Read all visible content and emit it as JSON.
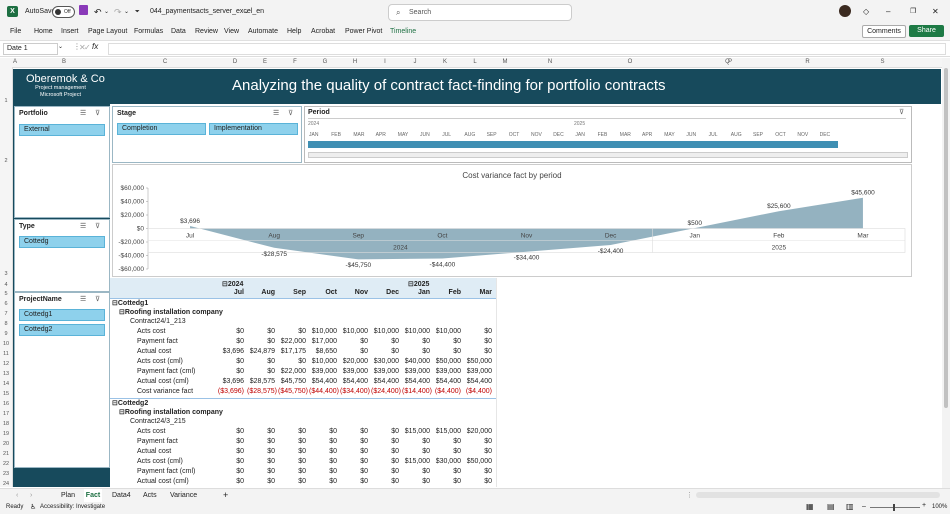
{
  "titlebar": {
    "autosave_label": "AutoSave",
    "autosave_state": "Off",
    "filename": "044_paymentsacts_server_excel_en",
    "search_placeholder": "Search"
  },
  "menu": {
    "items": [
      "File",
      "Home",
      "Insert",
      "Page Layout",
      "Formulas",
      "Data",
      "Review",
      "View",
      "Automate",
      "Help",
      "Acrobat",
      "Power Pivot",
      "Timeline"
    ],
    "comments_label": "Comments",
    "share_label": "Share"
  },
  "formula_bar": {
    "name_box": "Date 1",
    "fx_label": "fx",
    "value": ""
  },
  "columns": [
    "A",
    "B",
    "C",
    "D",
    "E",
    "F",
    "G",
    "H",
    "I",
    "J",
    "K",
    "L",
    "M",
    "N",
    "O",
    "P",
    "Q",
    "R",
    "S"
  ],
  "rows": [
    "1",
    "2",
    "3",
    "4",
    "5",
    "6",
    "7",
    "8",
    "9",
    "10",
    "11",
    "12",
    "13",
    "14",
    "15",
    "16",
    "17",
    "18",
    "19",
    "20",
    "21",
    "22",
    "23",
    "24"
  ],
  "banner": {
    "company": "Oberemok & Co",
    "line2": "Project management",
    "line3": "Microsoft Project",
    "title": "Analyzing the quality of contract fact-finding for portfolio contracts"
  },
  "slicers": {
    "portfolio": {
      "title": "Portfolio",
      "items": [
        "External"
      ]
    },
    "stage": {
      "title": "Stage",
      "items": [
        "Completion",
        "Implementation"
      ]
    },
    "type": {
      "title": "Type",
      "items": [
        "Cottedg"
      ]
    },
    "project": {
      "title": "ProjectName",
      "items": [
        "Cottedg1",
        "Cottedg2"
      ]
    }
  },
  "timeline": {
    "title": "Period",
    "year1": "2024",
    "year2": "2025",
    "months": [
      "JAN",
      "FEB",
      "MAR",
      "APR",
      "MAY",
      "JUN",
      "JUL",
      "AUG",
      "SEP",
      "OCT",
      "NOV",
      "DEC",
      "JAN",
      "FEB",
      "MAR",
      "APR",
      "MAY",
      "JUN",
      "JUL",
      "AUG",
      "SEP",
      "OCT",
      "NOV",
      "DEC"
    ]
  },
  "chart_data": {
    "type": "area",
    "title": "Cost variance fact by period",
    "categories": [
      "Jul",
      "Aug",
      "Sep",
      "Oct",
      "Nov",
      "Dec",
      "Jan",
      "Feb",
      "Mar"
    ],
    "year_labels": [
      {
        "label": "2024"
      },
      {
        "label": "2025"
      }
    ],
    "series": [
      {
        "values": [
          3696,
          -28575,
          -45750,
          -44400,
          -34400,
          -24400,
          500,
          25600,
          45600
        ]
      }
    ],
    "data_labels": [
      "$3,696",
      "-$28,575",
      "-$45,750",
      "-$44,400",
      "-$34,400",
      "-$24,400",
      "$500",
      "$25,600",
      "$45,600"
    ],
    "yticks": [
      "$60,000",
      "$40,000",
      "$20,000",
      "$0",
      "-$20,000",
      "-$40,000",
      "-$60,000"
    ],
    "ylim": [
      -60000,
      60000
    ],
    "color": "#8eaebd"
  },
  "pivot": {
    "year1": "2024",
    "year2": "2025",
    "months": [
      "Jul",
      "Aug",
      "Sep",
      "Oct",
      "Nov",
      "Dec",
      "Jan",
      "Feb",
      "Mar"
    ],
    "rows": [
      {
        "label": "Cottedg1",
        "level": 0,
        "kind": "group",
        "values": []
      },
      {
        "label": "Roofing installation company",
        "level": 1,
        "kind": "group",
        "values": []
      },
      {
        "label": "Contract24/1_213",
        "level": 2,
        "kind": "label",
        "values": []
      },
      {
        "label": "Acts cost",
        "level": 3,
        "kind": "data",
        "values": [
          "$0",
          "$0",
          "$0",
          "$10,000",
          "$10,000",
          "$10,000",
          "$10,000",
          "$10,000",
          "$0"
        ]
      },
      {
        "label": "Payment fact",
        "level": 3,
        "kind": "data",
        "values": [
          "$0",
          "$0",
          "$22,000",
          "$17,000",
          "$0",
          "$0",
          "$0",
          "$0",
          "$0"
        ]
      },
      {
        "label": "Actual cost",
        "level": 3,
        "kind": "data",
        "values": [
          "$3,696",
          "$24,879",
          "$17,175",
          "$8,650",
          "$0",
          "$0",
          "$0",
          "$0",
          "$0"
        ]
      },
      {
        "label": "Acts cost (cml)",
        "level": 3,
        "kind": "data",
        "values": [
          "$0",
          "$0",
          "$0",
          "$10,000",
          "$20,000",
          "$30,000",
          "$40,000",
          "$50,000",
          "$50,000"
        ]
      },
      {
        "label": "Payment fact (cml)",
        "level": 3,
        "kind": "data",
        "values": [
          "$0",
          "$0",
          "$22,000",
          "$39,000",
          "$39,000",
          "$39,000",
          "$39,000",
          "$39,000",
          "$39,000"
        ]
      },
      {
        "label": "Actual cost (cml)",
        "level": 3,
        "kind": "data",
        "values": [
          "$3,696",
          "$28,575",
          "$45,750",
          "$54,400",
          "$54,400",
          "$54,400",
          "$54,400",
          "$54,400",
          "$54,400"
        ]
      },
      {
        "label": "Cost variance fact",
        "level": 3,
        "kind": "neg",
        "values": [
          "($3,696)",
          "($28,575)",
          "($45,750)",
          "($44,400)",
          "($34,400)",
          "($24,400)",
          "($14,400)",
          "($4,400)",
          "($4,400)"
        ]
      },
      {
        "label": "Cottedg2",
        "level": 0,
        "kind": "group",
        "values": []
      },
      {
        "label": "Roofing installation company",
        "level": 1,
        "kind": "group",
        "values": []
      },
      {
        "label": "Contract24/3_215",
        "level": 2,
        "kind": "label",
        "values": []
      },
      {
        "label": "Acts cost",
        "level": 3,
        "kind": "data",
        "values": [
          "$0",
          "$0",
          "$0",
          "$0",
          "$0",
          "$0",
          "$15,000",
          "$15,000",
          "$20,000"
        ]
      },
      {
        "label": "Payment fact",
        "level": 3,
        "kind": "data",
        "values": [
          "$0",
          "$0",
          "$0",
          "$0",
          "$0",
          "$0",
          "$0",
          "$0",
          "$0"
        ]
      },
      {
        "label": "Actual cost",
        "level": 3,
        "kind": "data",
        "values": [
          "$0",
          "$0",
          "$0",
          "$0",
          "$0",
          "$0",
          "$0",
          "$0",
          "$0"
        ]
      },
      {
        "label": "Acts cost (cml)",
        "level": 3,
        "kind": "data",
        "values": [
          "$0",
          "$0",
          "$0",
          "$0",
          "$0",
          "$0",
          "$15,000",
          "$30,000",
          "$50,000"
        ]
      },
      {
        "label": "Payment fact (cml)",
        "level": 3,
        "kind": "data",
        "values": [
          "$0",
          "$0",
          "$0",
          "$0",
          "$0",
          "$0",
          "$0",
          "$0",
          "$0"
        ]
      },
      {
        "label": "Actual cost (cml)",
        "level": 3,
        "kind": "data",
        "values": [
          "$0",
          "$0",
          "$0",
          "$0",
          "$0",
          "$0",
          "$0",
          "$0",
          "$0"
        ]
      }
    ]
  },
  "sheet_tabs": [
    "Plan",
    "Fact",
    "Data4",
    "Acts",
    "Variance"
  ],
  "active_tab": "Fact",
  "status": {
    "ready": "Ready",
    "accessibility": "Accessibility: Investigate",
    "zoom": "100%"
  }
}
